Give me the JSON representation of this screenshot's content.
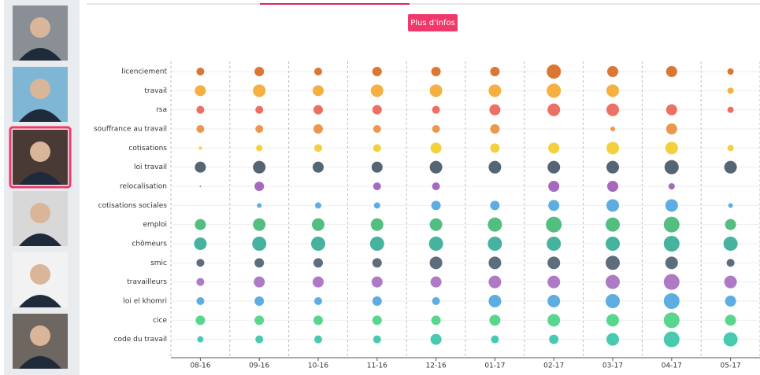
{
  "ui": {
    "button": "Plus d'infos"
  },
  "chart_data": {
    "type": "bubble",
    "grid": true,
    "categories": [
      "08-16",
      "09-16",
      "10-16",
      "11-16",
      "12-16",
      "01-17",
      "02-17",
      "03-17",
      "04-17",
      "05-17"
    ],
    "series": [
      {
        "name": "licenciement",
        "color": "#dc7633",
        "values": [
          5,
          6,
          5,
          6,
          6,
          6,
          9,
          7,
          7,
          4
        ]
      },
      {
        "name": "travail",
        "color": "#f5b041",
        "values": [
          7,
          8,
          7,
          8,
          8,
          8,
          9,
          8,
          null,
          4
        ]
      },
      {
        "name": "rsa",
        "color": "#ec7063",
        "values": [
          5,
          5,
          6,
          6,
          5,
          7,
          8,
          8,
          7,
          4
        ]
      },
      {
        "name": "souffrance au travail",
        "color": "#eb984e",
        "values": [
          5,
          5,
          6,
          5,
          5,
          6,
          null,
          3,
          7,
          null
        ]
      },
      {
        "name": "cotisations",
        "color": "#f4d03f",
        "values": [
          2,
          4,
          5,
          5,
          7,
          6,
          7,
          8,
          8,
          4
        ]
      },
      {
        "name": "loi travail",
        "color": "#566573",
        "values": [
          7,
          8,
          7,
          7,
          8,
          8,
          8,
          8,
          9,
          8
        ]
      },
      {
        "name": "relocalisation",
        "color": "#a569bd",
        "values": [
          1,
          6,
          null,
          5,
          5,
          null,
          7,
          7,
          4,
          null
        ]
      },
      {
        "name": "cotisations sociales",
        "color": "#5dade2",
        "values": [
          null,
          3,
          4,
          4,
          6,
          6,
          7,
          8,
          8,
          3
        ]
      },
      {
        "name": "emploi",
        "color": "#52be80",
        "values": [
          7,
          8,
          8,
          8,
          8,
          9,
          10,
          9,
          10,
          7
        ]
      },
      {
        "name": "chômeurs",
        "color": "#45b39d",
        "values": [
          8,
          9,
          9,
          9,
          9,
          9,
          9,
          9,
          10,
          9
        ]
      },
      {
        "name": "smic",
        "color": "#5d6d7e",
        "values": [
          5,
          6,
          6,
          6,
          8,
          8,
          8,
          9,
          8,
          5
        ]
      },
      {
        "name": "travailleurs",
        "color": "#af7ac5",
        "values": [
          5,
          7,
          7,
          7,
          7,
          8,
          8,
          9,
          10,
          8
        ]
      },
      {
        "name": "loi el khomri",
        "color": "#5dade2",
        "values": [
          5,
          6,
          5,
          6,
          5,
          8,
          8,
          9,
          10,
          7
        ]
      },
      {
        "name": "cice",
        "color": "#58d68d",
        "values": [
          6,
          6,
          6,
          6,
          6,
          7,
          8,
          8,
          10,
          7
        ]
      },
      {
        "name": "code du travail",
        "color": "#48c9b0",
        "values": [
          4,
          5,
          5,
          5,
          7,
          5,
          6,
          8,
          10,
          9
        ]
      }
    ]
  }
}
